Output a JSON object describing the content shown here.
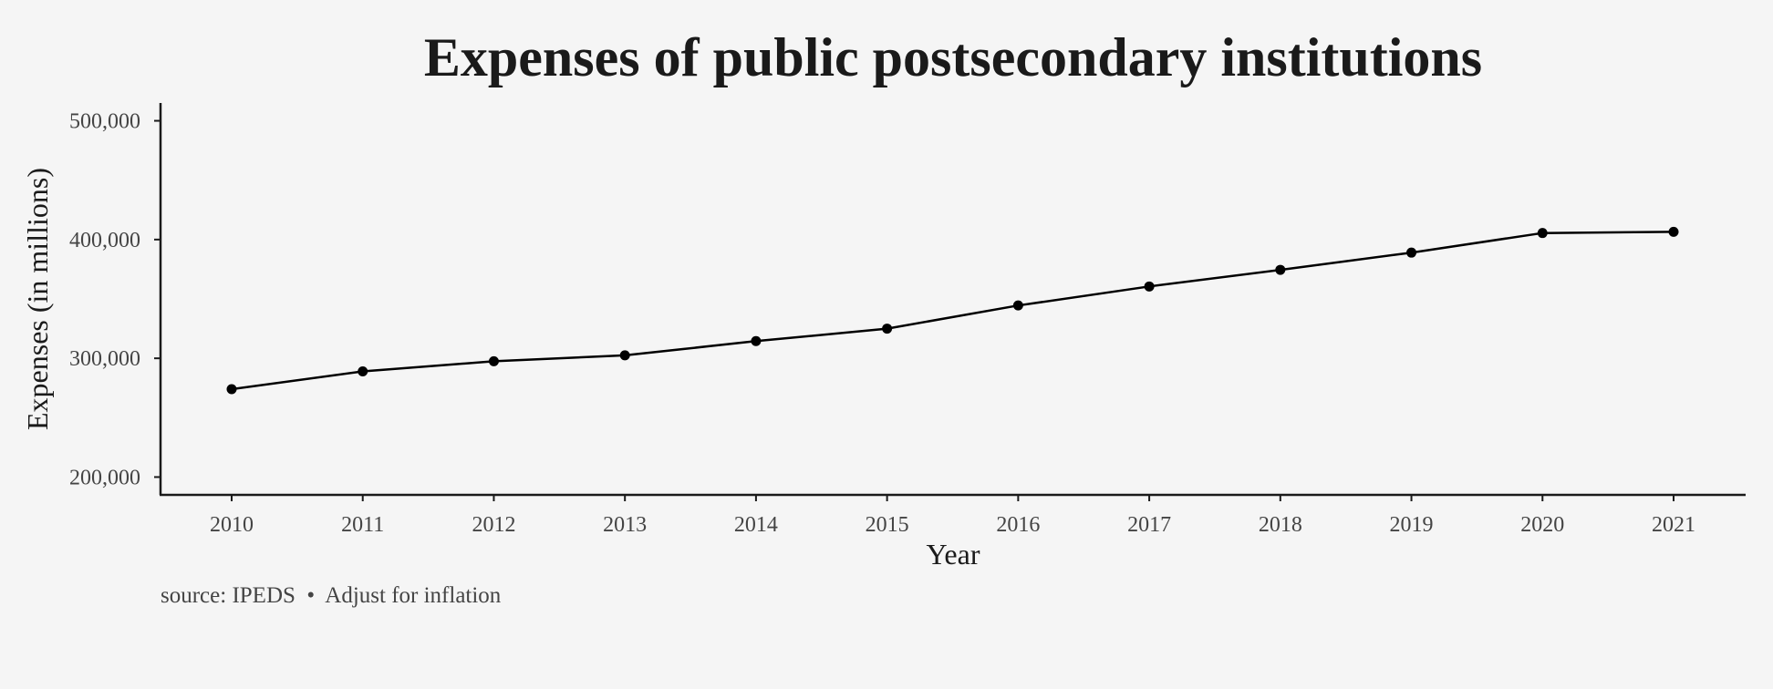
{
  "chart_data": {
    "type": "line",
    "title": "Expenses of public postsecondary institutions",
    "xlabel": "Year",
    "ylabel": "Expenses (in millions)",
    "caption": "source: IPEDS  •  Adjust for inflation",
    "x": [
      2010,
      2011,
      2012,
      2013,
      2014,
      2015,
      2016,
      2017,
      2018,
      2019,
      2020,
      2021
    ],
    "x_tick_labels": [
      "2010",
      "2011",
      "2012",
      "2013",
      "2014",
      "2015",
      "2016",
      "2017",
      "2018",
      "2019",
      "2020",
      "2021"
    ],
    "series": [
      {
        "values": [
          274000,
          289000,
          297500,
          302500,
          314500,
          325000,
          344500,
          360500,
          374500,
          389000,
          405500,
          406500
        ]
      }
    ],
    "ylim": [
      185000,
      515000
    ],
    "y_ticks": [
      200000,
      300000,
      400000,
      500000
    ],
    "y_tick_labels": [
      "200,000",
      "300,000",
      "400,000",
      "500,000"
    ],
    "grid": false,
    "legend": "none",
    "colors": {
      "background": "#f5f5f5",
      "line": "#000000",
      "text": "#1a1a1a",
      "tick_text": "#444444"
    }
  }
}
